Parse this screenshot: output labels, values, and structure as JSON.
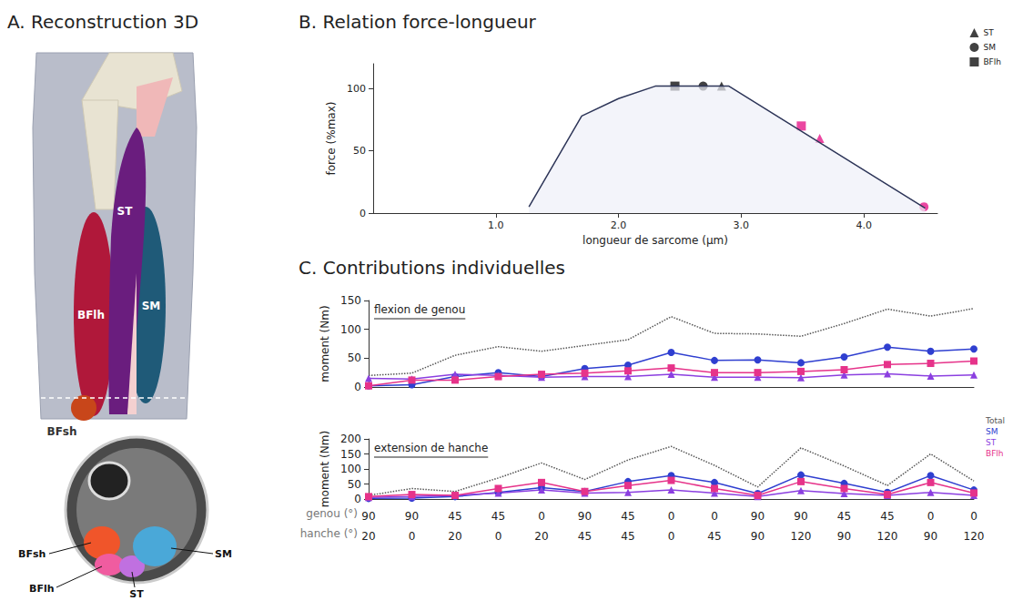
{
  "panels": [
    "A. Reconstruction 3D",
    "B. Relation force-longueur",
    "C. Contributions individuelles"
  ],
  "panel_a": {
    "labels_3d": [
      "ST",
      "SM",
      "BFlh",
      "BFsh"
    ],
    "labels_section": [
      "BFsh",
      "BFlh",
      "ST",
      "SM"
    ]
  },
  "chart_data": [
    {
      "type": "line",
      "x_label": "longueur de sarcome (µm)",
      "y_label": "force (%max)",
      "xlim": [
        0,
        4.6
      ],
      "xticks": [
        {
          "value": 1,
          "label": "1.0"
        },
        {
          "value": 2,
          "label": "2.0"
        },
        {
          "value": 3,
          "label": "3.0"
        },
        {
          "value": 4,
          "label": "4.0"
        }
      ],
      "ylim": [
        0,
        120
      ],
      "yticks": [
        0,
        50,
        100
      ],
      "grid": false,
      "legend": "top right",
      "series": [
        {
          "type": "line",
          "color": "#2d3558",
          "line_style": "solid",
          "marker": "none",
          "values": [
            [
              1.27,
              5
            ],
            [
              1.7,
              78
            ],
            [
              2.0,
              92
            ],
            [
              2.3,
              102
            ],
            [
              2.9,
              102
            ],
            [
              4.5,
              4
            ]
          ]
        },
        {
          "type": "scatter",
          "name": "ST",
          "marker": "triangle",
          "color": "#111111",
          "colors": [
            "#111111",
            "#e6198a"
          ],
          "values": [
            [
              2.84,
              102
            ],
            [
              3.64,
              60
            ]
          ]
        },
        {
          "type": "scatter",
          "name": "SM",
          "marker": "circle",
          "color": "#111111",
          "colors": [
            "#111111",
            "#e6198a"
          ],
          "values": [
            [
              2.69,
              102
            ],
            [
              4.49,
              5
            ]
          ]
        },
        {
          "type": "scatter",
          "name": "BFlh",
          "marker": "square",
          "color": "#111111",
          "colors": [
            "#111111",
            "#e6198a"
          ],
          "values": [
            [
              2.46,
              102
            ],
            [
              3.49,
              70
            ]
          ]
        }
      ]
    },
    {
      "type": "line",
      "title": "flexion de genou",
      "y_label": "moment (Nm)",
      "categories": [
        null,
        null,
        null,
        null,
        null,
        null,
        null,
        null,
        null,
        null,
        null,
        null,
        null,
        null,
        null
      ],
      "tick_labels": "y",
      "ylim": [
        0,
        150
      ],
      "yticks": [
        0,
        50,
        100,
        150
      ],
      "grid": false,
      "legend": "right",
      "series": [
        {
          "name": "Total",
          "color": "#555555",
          "marker": "none",
          "line_style": "dotted",
          "values": [
            20,
            24,
            55,
            70,
            62,
            72,
            82,
            122,
            93,
            92,
            88,
            110,
            135,
            123,
            136
          ]
        },
        {
          "name": "SM",
          "color": "#2f3fd0",
          "marker": "circle",
          "line_style": "solid",
          "values": [
            2,
            4,
            18,
            25,
            18,
            32,
            38,
            60,
            46,
            47,
            42,
            52,
            69,
            62,
            66
          ]
        },
        {
          "name": "ST",
          "color": "#8b3fe0",
          "marker": "triangle",
          "line_style": "solid",
          "values": [
            15,
            14,
            22,
            20,
            17,
            18,
            18,
            22,
            17,
            17,
            16,
            21,
            23,
            19,
            21
          ]
        },
        {
          "name": "BFlh",
          "color": "#e6338a",
          "marker": "square",
          "line_style": "solid",
          "values": [
            2,
            12,
            12,
            18,
            22,
            24,
            28,
            33,
            25,
            25,
            27,
            30,
            39,
            41,
            45
          ]
        }
      ]
    },
    {
      "type": "line",
      "title": "extension de hanche",
      "y_label": "moment (Nm)",
      "x_rows": [
        {
          "label": "genou (°)",
          "values": [
            90,
            90,
            45,
            45,
            0,
            90,
            45,
            0,
            0,
            90,
            90,
            45,
            45,
            0,
            0
          ]
        },
        {
          "label": "hanche (°)",
          "values": [
            20,
            0,
            20,
            0,
            20,
            45,
            45,
            0,
            45,
            90,
            120,
            90,
            120,
            90,
            120
          ]
        }
      ],
      "ylim": [
        0,
        200
      ],
      "yticks": [
        0,
        50,
        100,
        150,
        200
      ],
      "grid": false,
      "series": [
        {
          "name": "Total",
          "color": "#555555",
          "marker": "none",
          "line_style": "dotted",
          "values": [
            12,
            35,
            25,
            70,
            120,
            65,
            130,
            175,
            112,
            40,
            170,
            110,
            45,
            150,
            60
          ]
        },
        {
          "name": "SM",
          "color": "#2f3fd0",
          "marker": "circle",
          "line_style": "solid",
          "values": [
            2,
            3,
            8,
            22,
            38,
            25,
            58,
            78,
            55,
            18,
            80,
            52,
            22,
            78,
            30
          ]
        },
        {
          "name": "ST",
          "color": "#8b3fe0",
          "marker": "triangle",
          "line_style": "solid",
          "values": [
            5,
            8,
            12,
            20,
            30,
            20,
            22,
            30,
            20,
            8,
            28,
            18,
            12,
            22,
            12
          ]
        },
        {
          "name": "BFlh",
          "color": "#e6338a",
          "marker": "square",
          "line_style": "solid",
          "values": [
            8,
            15,
            12,
            35,
            55,
            25,
            45,
            62,
            35,
            12,
            58,
            35,
            15,
            55,
            20
          ]
        }
      ]
    }
  ]
}
